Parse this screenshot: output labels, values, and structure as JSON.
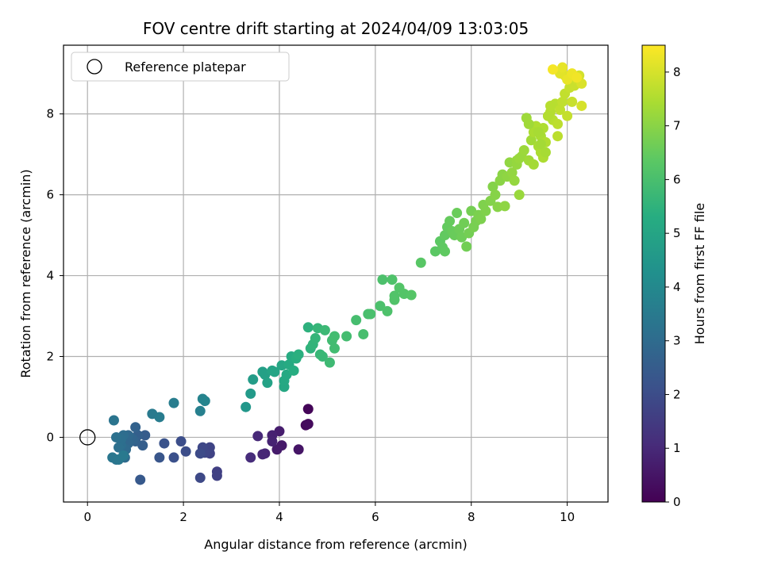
{
  "chart_data": {
    "type": "scatter",
    "title": "FOV centre drift starting at 2024/04/09 13:03:05",
    "xlabel": "Angular distance from reference (arcmin)",
    "ylabel": "Rotation from reference (arcmin)",
    "xlim": [
      -0.5,
      10.85
    ],
    "ylim": [
      -1.6,
      9.7
    ],
    "xticks": [
      0,
      2,
      4,
      6,
      8,
      10
    ],
    "yticks": [
      0,
      2,
      4,
      6,
      8
    ],
    "grid": true,
    "legend": {
      "placement": "top-left",
      "entries": [
        "Reference platepar"
      ]
    },
    "reference_point": {
      "x": 0,
      "y": 0,
      "label": "Reference platepar"
    },
    "colorbar": {
      "label": "Hours from first FF file",
      "range": [
        0,
        8.5
      ],
      "ticks": [
        0,
        1,
        2,
        3,
        4,
        5,
        6,
        7,
        8
      ],
      "colormap": "viridis"
    },
    "points": [
      {
        "x": 4.6,
        "y": 0.7,
        "h": 0.1
      },
      {
        "x": 4.55,
        "y": 0.3,
        "h": 0.2
      },
      {
        "x": 4.6,
        "y": 0.33,
        "h": 0.25
      },
      {
        "x": 4.4,
        "y": -0.3,
        "h": 0.5
      },
      {
        "x": 4.05,
        "y": -0.2,
        "h": 0.6
      },
      {
        "x": 3.95,
        "y": -0.3,
        "h": 0.65
      },
      {
        "x": 4.0,
        "y": 0.15,
        "h": 0.7
      },
      {
        "x": 3.85,
        "y": 0.05,
        "h": 0.8
      },
      {
        "x": 3.85,
        "y": -0.1,
        "h": 0.85
      },
      {
        "x": 3.7,
        "y": -0.4,
        "h": 0.9
      },
      {
        "x": 3.65,
        "y": -0.42,
        "h": 0.95
      },
      {
        "x": 3.55,
        "y": 0.03,
        "h": 1.0
      },
      {
        "x": 3.4,
        "y": -0.5,
        "h": 1.1
      },
      {
        "x": 2.7,
        "y": -0.85,
        "h": 1.6
      },
      {
        "x": 2.7,
        "y": -0.95,
        "h": 1.65
      },
      {
        "x": 2.55,
        "y": -0.4,
        "h": 1.7
      },
      {
        "x": 2.55,
        "y": -0.25,
        "h": 1.75
      },
      {
        "x": 2.45,
        "y": -0.38,
        "h": 1.8
      },
      {
        "x": 2.4,
        "y": -0.25,
        "h": 1.85
      },
      {
        "x": 2.35,
        "y": -1.0,
        "h": 1.9
      },
      {
        "x": 2.35,
        "y": -0.4,
        "h": 1.95
      },
      {
        "x": 2.05,
        "y": -0.35,
        "h": 2.0
      },
      {
        "x": 1.95,
        "y": -0.1,
        "h": 2.05
      },
      {
        "x": 1.8,
        "y": -0.5,
        "h": 2.1
      },
      {
        "x": 1.6,
        "y": -0.15,
        "h": 2.2
      },
      {
        "x": 1.5,
        "y": -0.5,
        "h": 2.3
      },
      {
        "x": 1.1,
        "y": -1.05,
        "h": 2.4
      },
      {
        "x": 1.2,
        "y": 0.05,
        "h": 2.5
      },
      {
        "x": 1.15,
        "y": -0.2,
        "h": 2.55
      },
      {
        "x": 1.05,
        "y": 0.05,
        "h": 2.6
      },
      {
        "x": 1.0,
        "y": -0.1,
        "h": 2.65
      },
      {
        "x": 1.0,
        "y": 0.25,
        "h": 2.7
      },
      {
        "x": 0.95,
        "y": -0.05,
        "h": 2.75
      },
      {
        "x": 0.9,
        "y": 0.0,
        "h": 2.8
      },
      {
        "x": 0.85,
        "y": -0.15,
        "h": 2.85
      },
      {
        "x": 0.85,
        "y": 0.05,
        "h": 2.9
      },
      {
        "x": 0.8,
        "y": -0.3,
        "h": 2.95
      },
      {
        "x": 0.78,
        "y": -0.5,
        "h": 3.0
      },
      {
        "x": 0.75,
        "y": 0.05,
        "h": 3.05
      },
      {
        "x": 0.7,
        "y": -0.2,
        "h": 3.1
      },
      {
        "x": 0.7,
        "y": -0.05,
        "h": 3.12
      },
      {
        "x": 0.65,
        "y": -0.25,
        "h": 3.15
      },
      {
        "x": 0.6,
        "y": 0.0,
        "h": 3.2
      },
      {
        "x": 0.6,
        "y": -0.55,
        "h": 3.25
      },
      {
        "x": 0.55,
        "y": 0.42,
        "h": 3.3
      },
      {
        "x": 0.52,
        "y": -0.5,
        "h": 3.35
      },
      {
        "x": 0.65,
        "y": -0.55,
        "h": 3.4
      },
      {
        "x": 0.75,
        "y": -0.45,
        "h": 3.45
      },
      {
        "x": 1.35,
        "y": 0.58,
        "h": 3.5
      },
      {
        "x": 1.5,
        "y": 0.5,
        "h": 3.55
      },
      {
        "x": 1.8,
        "y": 0.85,
        "h": 3.6
      },
      {
        "x": 2.35,
        "y": 0.65,
        "h": 3.7
      },
      {
        "x": 2.4,
        "y": 0.95,
        "h": 3.8
      },
      {
        "x": 2.45,
        "y": 0.9,
        "h": 3.85
      },
      {
        "x": 3.3,
        "y": 0.75,
        "h": 4.5
      },
      {
        "x": 3.4,
        "y": 1.08,
        "h": 4.6
      },
      {
        "x": 3.45,
        "y": 1.43,
        "h": 4.7
      },
      {
        "x": 3.65,
        "y": 1.62,
        "h": 4.8
      },
      {
        "x": 3.7,
        "y": 1.55,
        "h": 4.85
      },
      {
        "x": 3.75,
        "y": 1.35,
        "h": 4.9
      },
      {
        "x": 3.85,
        "y": 1.65,
        "h": 4.95
      },
      {
        "x": 3.9,
        "y": 1.62,
        "h": 5.0
      },
      {
        "x": 4.05,
        "y": 1.78,
        "h": 5.05
      },
      {
        "x": 4.1,
        "y": 1.25,
        "h": 5.1
      },
      {
        "x": 4.1,
        "y": 1.4,
        "h": 5.12
      },
      {
        "x": 4.15,
        "y": 1.55,
        "h": 5.15
      },
      {
        "x": 4.2,
        "y": 1.8,
        "h": 5.2
      },
      {
        "x": 4.25,
        "y": 2.0,
        "h": 5.25
      },
      {
        "x": 4.3,
        "y": 1.65,
        "h": 5.3
      },
      {
        "x": 4.35,
        "y": 1.95,
        "h": 5.35
      },
      {
        "x": 4.4,
        "y": 2.05,
        "h": 5.4
      },
      {
        "x": 4.6,
        "y": 2.72,
        "h": 5.45
      },
      {
        "x": 4.65,
        "y": 2.2,
        "h": 5.5
      },
      {
        "x": 4.7,
        "y": 2.3,
        "h": 5.55
      },
      {
        "x": 4.75,
        "y": 2.45,
        "h": 5.6
      },
      {
        "x": 4.8,
        "y": 2.7,
        "h": 5.62
      },
      {
        "x": 4.85,
        "y": 2.05,
        "h": 5.65
      },
      {
        "x": 4.9,
        "y": 2.0,
        "h": 5.7
      },
      {
        "x": 4.95,
        "y": 2.65,
        "h": 5.75
      },
      {
        "x": 5.05,
        "y": 1.85,
        "h": 5.8
      },
      {
        "x": 5.1,
        "y": 2.4,
        "h": 5.85
      },
      {
        "x": 5.15,
        "y": 2.2,
        "h": 5.87
      },
      {
        "x": 5.15,
        "y": 2.5,
        "h": 5.9
      },
      {
        "x": 5.4,
        "y": 2.5,
        "h": 5.92
      },
      {
        "x": 5.6,
        "y": 2.9,
        "h": 5.95
      },
      {
        "x": 5.75,
        "y": 2.55,
        "h": 5.97
      },
      {
        "x": 5.85,
        "y": 3.05,
        "h": 6.0
      },
      {
        "x": 5.9,
        "y": 3.05,
        "h": 6.02
      },
      {
        "x": 6.1,
        "y": 3.25,
        "h": 6.05
      },
      {
        "x": 6.15,
        "y": 3.9,
        "h": 6.07
      },
      {
        "x": 6.25,
        "y": 3.12,
        "h": 6.1
      },
      {
        "x": 6.35,
        "y": 3.9,
        "h": 6.12
      },
      {
        "x": 6.4,
        "y": 3.4,
        "h": 6.15
      },
      {
        "x": 6.4,
        "y": 3.5,
        "h": 6.17
      },
      {
        "x": 6.5,
        "y": 3.7,
        "h": 6.2
      },
      {
        "x": 6.6,
        "y": 3.55,
        "h": 6.22
      },
      {
        "x": 6.75,
        "y": 3.52,
        "h": 6.25
      },
      {
        "x": 6.95,
        "y": 4.32,
        "h": 6.3
      },
      {
        "x": 7.25,
        "y": 4.6,
        "h": 6.35
      },
      {
        "x": 7.35,
        "y": 4.85,
        "h": 6.38
      },
      {
        "x": 7.4,
        "y": 4.7,
        "h": 6.4
      },
      {
        "x": 7.45,
        "y": 4.6,
        "h": 6.42
      },
      {
        "x": 7.45,
        "y": 5.0,
        "h": 6.45
      },
      {
        "x": 7.5,
        "y": 5.2,
        "h": 6.47
      },
      {
        "x": 7.55,
        "y": 5.35,
        "h": 6.5
      },
      {
        "x": 7.6,
        "y": 5.1,
        "h": 6.52
      },
      {
        "x": 7.65,
        "y": 5.0,
        "h": 6.55
      },
      {
        "x": 7.7,
        "y": 5.55,
        "h": 6.57
      },
      {
        "x": 7.75,
        "y": 5.15,
        "h": 6.6
      },
      {
        "x": 7.8,
        "y": 4.95,
        "h": 6.62
      },
      {
        "x": 7.85,
        "y": 5.3,
        "h": 6.65
      },
      {
        "x": 7.9,
        "y": 4.72,
        "h": 6.67
      },
      {
        "x": 7.95,
        "y": 5.05,
        "h": 6.7
      },
      {
        "x": 8.0,
        "y": 5.6,
        "h": 6.72
      },
      {
        "x": 8.05,
        "y": 5.2,
        "h": 6.75
      },
      {
        "x": 8.1,
        "y": 5.35,
        "h": 6.77
      },
      {
        "x": 8.15,
        "y": 5.5,
        "h": 6.8
      },
      {
        "x": 8.2,
        "y": 5.4,
        "h": 6.82
      },
      {
        "x": 8.25,
        "y": 5.75,
        "h": 6.85
      },
      {
        "x": 8.3,
        "y": 5.6,
        "h": 6.87
      },
      {
        "x": 8.4,
        "y": 5.85,
        "h": 6.9
      },
      {
        "x": 8.45,
        "y": 6.2,
        "h": 6.92
      },
      {
        "x": 8.5,
        "y": 6.0,
        "h": 6.95
      },
      {
        "x": 8.55,
        "y": 5.7,
        "h": 6.97
      },
      {
        "x": 8.6,
        "y": 6.35,
        "h": 7.0
      },
      {
        "x": 8.65,
        "y": 6.5,
        "h": 7.02
      },
      {
        "x": 8.7,
        "y": 5.72,
        "h": 7.05
      },
      {
        "x": 8.75,
        "y": 6.45,
        "h": 7.07
      },
      {
        "x": 8.8,
        "y": 6.8,
        "h": 7.1
      },
      {
        "x": 8.85,
        "y": 6.55,
        "h": 7.12
      },
      {
        "x": 8.9,
        "y": 6.35,
        "h": 7.15
      },
      {
        "x": 8.95,
        "y": 6.85,
        "h": 7.17
      },
      {
        "x": 9.0,
        "y": 6.0,
        "h": 7.2
      },
      {
        "x": 9.05,
        "y": 6.95,
        "h": 7.22
      },
      {
        "x": 9.1,
        "y": 7.1,
        "h": 7.25
      },
      {
        "x": 9.15,
        "y": 7.9,
        "h": 7.27
      },
      {
        "x": 9.2,
        "y": 6.85,
        "h": 7.3
      },
      {
        "x": 9.25,
        "y": 7.35,
        "h": 7.32
      },
      {
        "x": 9.3,
        "y": 6.75,
        "h": 7.35
      },
      {
        "x": 9.35,
        "y": 7.65,
        "h": 7.37
      },
      {
        "x": 9.4,
        "y": 7.2,
        "h": 7.4
      },
      {
        "x": 9.45,
        "y": 7.45,
        "h": 7.42
      },
      {
        "x": 9.45,
        "y": 7.05,
        "h": 7.45
      },
      {
        "x": 9.5,
        "y": 6.92,
        "h": 7.47
      },
      {
        "x": 9.5,
        "y": 7.65,
        "h": 7.5
      },
      {
        "x": 9.55,
        "y": 7.3,
        "h": 7.52
      },
      {
        "x": 9.6,
        "y": 7.95,
        "h": 7.55
      },
      {
        "x": 9.65,
        "y": 8.05,
        "h": 7.57
      },
      {
        "x": 9.7,
        "y": 7.85,
        "h": 7.6
      },
      {
        "x": 9.75,
        "y": 8.25,
        "h": 7.62
      },
      {
        "x": 9.8,
        "y": 7.45,
        "h": 7.65
      },
      {
        "x": 9.8,
        "y": 7.75,
        "h": 7.67
      },
      {
        "x": 9.85,
        "y": 8.1,
        "h": 7.7
      },
      {
        "x": 9.9,
        "y": 8.3,
        "h": 7.72
      },
      {
        "x": 9.95,
        "y": 8.5,
        "h": 7.75
      },
      {
        "x": 10.0,
        "y": 7.95,
        "h": 7.77
      },
      {
        "x": 10.05,
        "y": 8.65,
        "h": 7.8
      },
      {
        "x": 10.1,
        "y": 8.3,
        "h": 7.82
      },
      {
        "x": 10.15,
        "y": 8.7,
        "h": 7.85
      },
      {
        "x": 10.2,
        "y": 8.85,
        "h": 7.9
      },
      {
        "x": 10.25,
        "y": 8.95,
        "h": 7.95
      },
      {
        "x": 10.3,
        "y": 8.2,
        "h": 8.0
      },
      {
        "x": 10.3,
        "y": 8.75,
        "h": 8.05
      },
      {
        "x": 9.95,
        "y": 8.95,
        "h": 8.1
      },
      {
        "x": 9.85,
        "y": 9.0,
        "h": 8.15
      },
      {
        "x": 9.9,
        "y": 9.15,
        "h": 8.2
      },
      {
        "x": 10.0,
        "y": 8.85,
        "h": 8.25
      },
      {
        "x": 10.1,
        "y": 9.0,
        "h": 8.3
      },
      {
        "x": 9.35,
        "y": 7.7,
        "h": 7.5
      },
      {
        "x": 9.3,
        "y": 7.55,
        "h": 7.45
      },
      {
        "x": 9.6,
        "y": 7.95,
        "h": 7.55
      },
      {
        "x": 9.65,
        "y": 8.2,
        "h": 7.6
      },
      {
        "x": 9.45,
        "y": 7.25,
        "h": 7.35
      },
      {
        "x": 9.55,
        "y": 7.05,
        "h": 7.4
      },
      {
        "x": 9.4,
        "y": 7.55,
        "h": 7.4
      },
      {
        "x": 9.7,
        "y": 9.1,
        "h": 8.4
      },
      {
        "x": 10.2,
        "y": 8.9,
        "h": 8.35
      },
      {
        "x": 9.2,
        "y": 7.75,
        "h": 7.3
      },
      {
        "x": 8.95,
        "y": 6.75,
        "h": 7.15
      },
      {
        "x": 9.0,
        "y": 6.9,
        "h": 7.2
      }
    ]
  }
}
